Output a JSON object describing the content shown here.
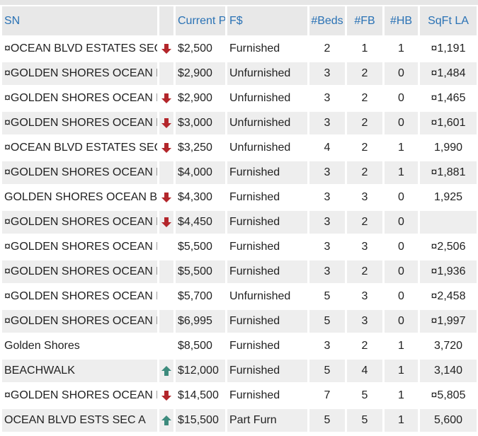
{
  "table": {
    "header": [
      "SN",
      "Current P",
      "F$",
      "#Beds",
      "#FB",
      "#HB",
      "SqFt LA"
    ],
    "rows": [
      [
        "¤OCEAN BLVD ESTATES SEC",
        "$2,500",
        "Furnished",
        2,
        1,
        1,
        "¤1,191"
      ],
      [
        "¤GOLDEN SHORES OCEAN B",
        "$2,900",
        "Unfurnished",
        3,
        2,
        0,
        "¤1,484"
      ],
      [
        "¤GOLDEN SHORES OCEAN B",
        "$2,900",
        "Unfurnished",
        3,
        2,
        0,
        "¤1,465"
      ],
      [
        "¤GOLDEN SHORES OCEAN B",
        "$3,000",
        "Unfurnished",
        3,
        2,
        0,
        "¤1,601"
      ],
      [
        "¤OCEAN BLVD ESTATES SEC",
        "$3,250",
        "Unfurnished",
        4,
        2,
        1,
        "1,990"
      ],
      [
        "¤GOLDEN SHORES OCEAN B",
        "$4,000",
        "Furnished",
        3,
        2,
        1,
        "¤1,881"
      ],
      [
        "GOLDEN SHORES OCEAN BLV",
        "$4,300",
        "Furnished",
        3,
        3,
        0,
        "1,925"
      ],
      [
        "¤GOLDEN SHORES OCEAN B",
        "$4,450",
        "Furnished",
        3,
        2,
        0,
        null
      ],
      [
        "¤GOLDEN SHORES OCEAN B",
        "$5,500",
        "Furnished",
        3,
        3,
        0,
        "¤2,506"
      ],
      [
        "¤GOLDEN SHORES OCEAN B",
        "$5,500",
        "Furnished",
        3,
        2,
        0,
        "¤1,936"
      ],
      [
        "¤GOLDEN SHORES OCEAN B",
        "$5,700",
        "Unfurnished",
        5,
        3,
        0,
        "¤2,458"
      ],
      [
        "¤GOLDEN SHORES OCEAN B",
        "$6,995",
        "Furnished",
        5,
        3,
        0,
        "¤1,997"
      ],
      [
        "Golden Shores",
        "$8,500",
        "Furnished",
        3,
        2,
        1,
        "3,720"
      ],
      [
        "BEACHWALK",
        "$12,000",
        "Furnished",
        5,
        4,
        1,
        "3,140"
      ],
      [
        "¤GOLDEN SHORES OCEAN B",
        "$14,500",
        "Furnished",
        7,
        5,
        1,
        "¤5,805"
      ],
      [
        "OCEAN BLVD ESTS SEC A",
        "$15,500",
        "Part Furn",
        5,
        5,
        1,
        "5,600"
      ]
    ]
  }
}
